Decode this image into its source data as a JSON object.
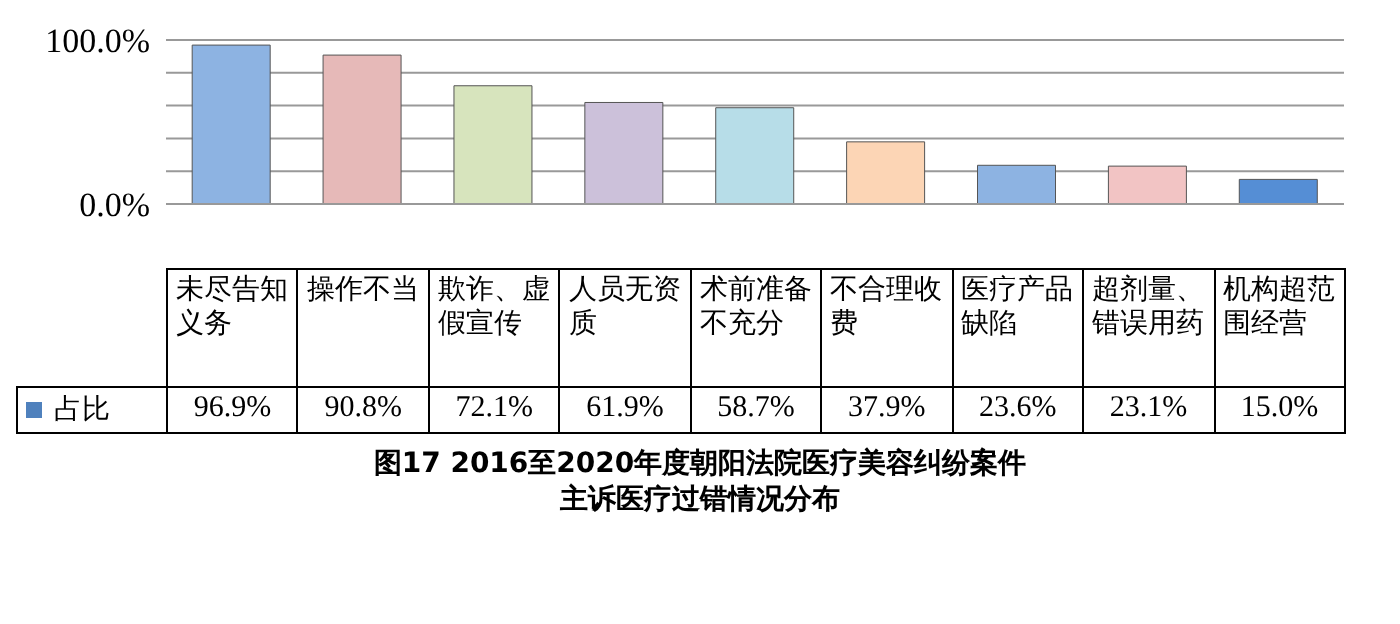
{
  "chart_data": {
    "type": "bar",
    "title": "图17  2016至2020年度朝阳法院医疗美容纠纷案件",
    "subtitle": "主诉医疗过错情况分布",
    "categories": [
      "未尽告知义务",
      "操作不当",
      "欺诈、虚假宣传",
      "人员无资质",
      "术前准备不充分",
      "不合理收费",
      "医疗产品缺陷",
      "超剂量、错误用药",
      "机构超范围经营"
    ],
    "series": [
      {
        "name": "占比",
        "color": "#4f81bd",
        "colors": [
          "#8db3e2",
          "#e6b9b8",
          "#d7e4bd",
          "#ccc1da",
          "#b7dde8",
          "#fcd5b5",
          "#8db3e2",
          "#f2c4c4",
          "#558ed5"
        ],
        "values": [
          96.9,
          90.8,
          72.1,
          61.9,
          58.7,
          37.9,
          23.6,
          23.1,
          15.0
        ],
        "value_labels": [
          "96.9%",
          "90.8%",
          "72.1%",
          "61.9%",
          "58.7%",
          "37.9%",
          "23.6%",
          "23.1%",
          "15.0%"
        ]
      }
    ],
    "ylim": [
      0,
      100
    ],
    "yticks": [
      {
        "value": 0,
        "label": "0.0%"
      },
      {
        "value": 20,
        "label": null
      },
      {
        "value": 40,
        "label": null
      },
      {
        "value": 60,
        "label": null
      },
      {
        "value": 80,
        "label": null
      },
      {
        "value": 100,
        "label": "100.0%"
      }
    ],
    "grid": "y",
    "legend": "bottom"
  }
}
